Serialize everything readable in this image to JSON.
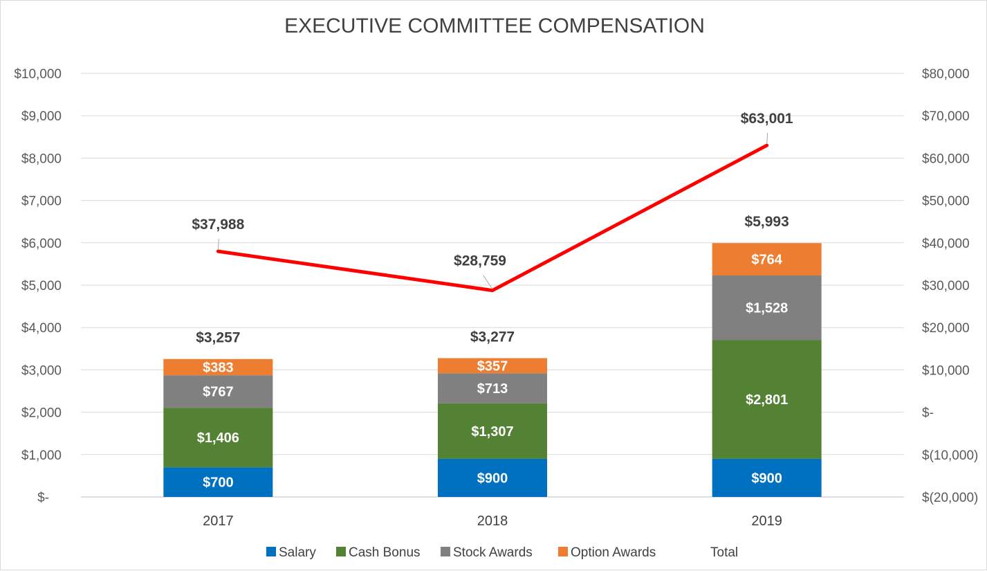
{
  "chart_data": {
    "type": "bar",
    "title": "EXECUTIVE COMMITTEE COMPENSATION",
    "categories": [
      "2017",
      "2018",
      "2019"
    ],
    "stacked": true,
    "series": [
      {
        "name": "Salary",
        "color": "#0070c0",
        "values": [
          700,
          900,
          900
        ],
        "labels": [
          "$700",
          "$900",
          "$900"
        ]
      },
      {
        "name": "Cash Bonus",
        "color": "#548235",
        "values": [
          1406,
          1307,
          2801
        ],
        "labels": [
          "$1,406",
          "$1,307",
          "$2,801"
        ]
      },
      {
        "name": "Stock Awards",
        "color": "#808080",
        "values": [
          767,
          713,
          1528
        ],
        "labels": [
          "$767",
          "$713",
          "$1,528"
        ]
      },
      {
        "name": "Option Awards",
        "color": "#ed7d31",
        "values": [
          383,
          357,
          764
        ],
        "labels": [
          "$383",
          "$357",
          "$764"
        ]
      }
    ],
    "bar_totals": {
      "values": [
        3257,
        3277,
        5993
      ],
      "labels": [
        "$3,257",
        "$3,277",
        "$5,993"
      ]
    },
    "line_series": {
      "name": "Total",
      "color": "#ff0000",
      "axis": "secondary",
      "values": [
        37988,
        28759,
        63001
      ],
      "labels": [
        "$37,988",
        "$28,759",
        "$63,001"
      ]
    },
    "primary_axis": {
      "ylim": [
        0,
        10000
      ],
      "ticks": [
        "$-",
        "$1,000",
        "$2,000",
        "$3,000",
        "$4,000",
        "$5,000",
        "$6,000",
        "$7,000",
        "$8,000",
        "$9,000",
        "$10,000"
      ]
    },
    "secondary_axis": {
      "ylim": [
        -20000,
        80000
      ],
      "ticks": [
        "$(20,000)",
        "$(10,000)",
        "$-",
        "$10,000",
        "$20,000",
        "$30,000",
        "$40,000",
        "$50,000",
        "$60,000",
        "$70,000",
        "$80,000"
      ]
    },
    "grid": true,
    "legend": {
      "placement": "bottom",
      "items": [
        "Salary",
        "Cash Bonus",
        "Stock Awards",
        "Option Awards",
        "Total"
      ]
    }
  }
}
